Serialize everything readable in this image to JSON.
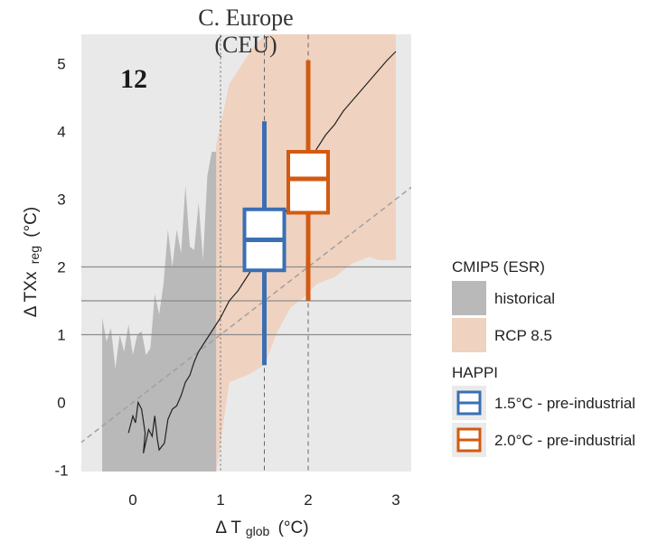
{
  "chart_data": {
    "type": "area",
    "title": "C. Europe",
    "subtitle": "(CEU)",
    "panel_number": "12",
    "xlabel": {
      "main": "Δ T",
      "sub": "glob",
      "unit": "(°C)"
    },
    "ylabel": {
      "main": "Δ TXx",
      "sub": "reg",
      "unit": "(°C)"
    },
    "xlim": [
      -0.6,
      3.2
    ],
    "ylim": [
      -1.0,
      5.5
    ],
    "x_ticks": [
      0,
      1,
      2,
      3
    ],
    "y_ticks": [
      -1,
      0,
      1,
      2,
      3,
      4,
      5
    ],
    "grid": false,
    "reference_lines": {
      "horizontal_y": [
        1.0,
        1.5,
        2.0
      ],
      "vertical_dotted_x": [
        1.0
      ],
      "vertical_dashed_x": [
        1.5,
        2.0
      ],
      "diagonal_one_to_one": {
        "slope": 1,
        "intercept": 0
      }
    },
    "legend": {
      "position": "right",
      "cmip_title": "CMIP5 (ESR)",
      "historical_label": "historical",
      "rcp_label": "RCP 8.5",
      "happi_title": "HAPPI",
      "box15_label": "1.5°C - pre-industrial",
      "box20_label": "2.0°C - pre-industrial"
    },
    "historical_envelope": {
      "upper": [
        [
          -0.35,
          1.25
        ],
        [
          -0.3,
          0.9
        ],
        [
          -0.25,
          1.1
        ],
        [
          -0.2,
          0.5
        ],
        [
          -0.15,
          1.0
        ],
        [
          -0.1,
          0.75
        ],
        [
          -0.05,
          1.15
        ],
        [
          0.0,
          0.7
        ],
        [
          0.05,
          1.0
        ],
        [
          0.1,
          1.05
        ],
        [
          0.15,
          0.7
        ],
        [
          0.2,
          0.8
        ],
        [
          0.25,
          1.6
        ],
        [
          0.3,
          1.3
        ],
        [
          0.35,
          1.75
        ],
        [
          0.4,
          2.55
        ],
        [
          0.45,
          2.0
        ],
        [
          0.5,
          2.55
        ],
        [
          0.55,
          2.2
        ],
        [
          0.6,
          3.2
        ],
        [
          0.65,
          2.3
        ],
        [
          0.7,
          2.25
        ],
        [
          0.75,
          2.95
        ],
        [
          0.8,
          2.1
        ],
        [
          0.85,
          3.35
        ],
        [
          0.9,
          3.7
        ],
        [
          0.95,
          3.7
        ]
      ],
      "lower": [
        [
          -0.35,
          -1.05
        ],
        [
          0.95,
          -1.05
        ]
      ]
    },
    "rcp_envelope": {
      "upper": [
        [
          0.95,
          3.8
        ],
        [
          1.1,
          4.7
        ],
        [
          1.25,
          5.0
        ],
        [
          1.4,
          5.3
        ],
        [
          1.55,
          5.45
        ],
        [
          1.8,
          5.45
        ],
        [
          2.0,
          5.5
        ],
        [
          2.5,
          5.5
        ],
        [
          3.0,
          5.5
        ]
      ],
      "lower": [
        [
          0.95,
          -1.05
        ],
        [
          1.1,
          0.3
        ],
        [
          1.3,
          0.4
        ],
        [
          1.5,
          0.55
        ],
        [
          1.65,
          1.05
        ],
        [
          1.8,
          1.4
        ],
        [
          1.95,
          1.55
        ],
        [
          2.1,
          1.75
        ],
        [
          2.3,
          1.85
        ],
        [
          2.5,
          2.05
        ],
        [
          2.7,
          2.15
        ],
        [
          2.8,
          2.1
        ],
        [
          3.0,
          2.1
        ]
      ]
    },
    "series": [
      {
        "name": "historical",
        "color": "#b9b9b9"
      },
      {
        "name": "RCP 8.5",
        "color": "#efd2c0"
      },
      {
        "name": "1.5°C - pre-industrial",
        "color": "#3a6fb4",
        "box": {
          "x": 1.5,
          "whisker_low": 0.55,
          "q1": 1.95,
          "median": 2.4,
          "q3": 2.85,
          "whisker_high": 4.15
        }
      },
      {
        "name": "2.0°C - pre-industrial",
        "color": "#d35a12",
        "box": {
          "x": 2.0,
          "whisker_low": 1.5,
          "q1": 2.8,
          "median": 3.3,
          "q3": 3.7,
          "whisker_high": 5.05
        }
      }
    ],
    "multi_model_mean": [
      [
        -0.05,
        -0.45
      ],
      [
        0.0,
        -0.2
      ],
      [
        0.03,
        -0.3
      ],
      [
        0.06,
        0.0
      ],
      [
        0.1,
        -0.1
      ],
      [
        0.14,
        -0.45
      ],
      [
        0.12,
        -0.75
      ],
      [
        0.18,
        -0.4
      ],
      [
        0.22,
        -0.5
      ],
      [
        0.25,
        -0.2
      ],
      [
        0.28,
        -0.55
      ],
      [
        0.3,
        -0.7
      ],
      [
        0.36,
        -0.6
      ],
      [
        0.4,
        -0.25
      ],
      [
        0.45,
        -0.1
      ],
      [
        0.5,
        -0.05
      ],
      [
        0.55,
        0.1
      ],
      [
        0.6,
        0.3
      ],
      [
        0.65,
        0.4
      ],
      [
        0.7,
        0.6
      ],
      [
        0.75,
        0.75
      ],
      [
        0.8,
        0.85
      ],
      [
        0.9,
        1.05
      ],
      [
        1.0,
        1.25
      ],
      [
        1.1,
        1.5
      ],
      [
        1.2,
        1.65
      ],
      [
        1.3,
        1.85
      ],
      [
        1.4,
        2.05
      ],
      [
        1.5,
        2.25
      ],
      [
        1.6,
        2.45
      ],
      [
        1.7,
        2.7
      ],
      [
        1.8,
        2.95
      ],
      [
        1.9,
        3.25
      ],
      [
        2.0,
        3.5
      ],
      [
        2.1,
        3.75
      ],
      [
        2.2,
        3.95
      ],
      [
        2.3,
        4.1
      ],
      [
        2.4,
        4.3
      ],
      [
        2.5,
        4.45
      ],
      [
        2.6,
        4.6
      ],
      [
        2.7,
        4.75
      ],
      [
        2.8,
        4.9
      ],
      [
        2.9,
        5.05
      ],
      [
        3.0,
        5.18
      ]
    ]
  },
  "colors": {
    "panel_bg": "#e9e9e9",
    "historical_fill": "#b9b9b9",
    "rcp_fill": "#efd2c0",
    "box15": "#3a6fb4",
    "box20": "#d35a12",
    "ref_line": "#8c8c8c",
    "mean_line": "#222222"
  }
}
